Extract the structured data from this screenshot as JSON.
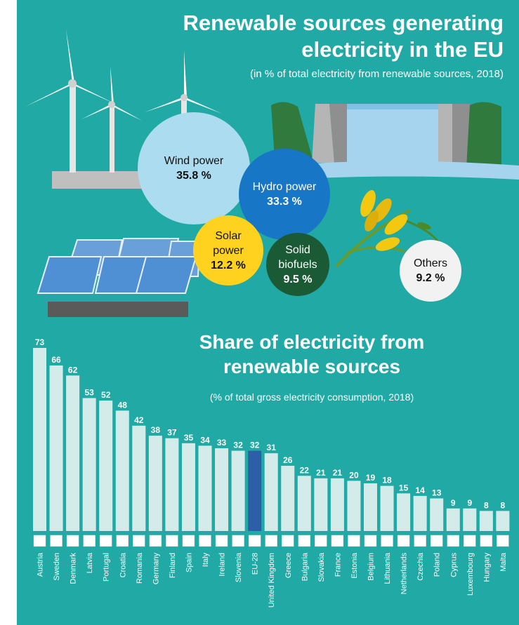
{
  "top_section": {
    "title_line1": "Renewable sources generating",
    "title_line2": "electricity in the EU",
    "subtitle": "(in % of total electricity from renewable sources, 2018)",
    "bubbles": [
      {
        "label": "Wind power",
        "value": "35.8 %"
      },
      {
        "label": "Hydro power",
        "value": "33.3 %"
      },
      {
        "label_line1": "Solar",
        "label_line2": "power",
        "value": "12.2 %"
      },
      {
        "label_line1": "Solid",
        "label_line2": "biofuels",
        "value": "9.5 %"
      },
      {
        "label": "Others",
        "value": "9.2 %"
      }
    ]
  },
  "bottom_section": {
    "title_line1": "Share of electricity from",
    "title_line2": "renewable sources",
    "subtitle": "(% of total gross electricity consumption, 2018)"
  },
  "colors": {
    "background": "#21aaa5",
    "bar": "#d3ecea",
    "bar_highlight": "#2d5fa8",
    "wind_bubble": "#acdcef",
    "hydro_bubble": "#1776c6",
    "solar_bubble": "#ffd21f",
    "biofuels_bubble": "#1a5a35",
    "others_bubble": "#f2f2f2"
  },
  "chart_data": [
    {
      "type": "pie",
      "categories": [
        "Wind power",
        "Hydro power",
        "Solar power",
        "Solid biofuels",
        "Others"
      ],
      "values": [
        35.8,
        33.3,
        12.2,
        9.5,
        9.2
      ],
      "title": "Renewable sources generating electricity in the EU",
      "subtitle": "(in % of total electricity from renewable sources, 2018)"
    },
    {
      "type": "bar",
      "title": "Share of electricity from renewable sources",
      "subtitle": "(% of total gross electricity consumption, 2018)",
      "categories": [
        "Austria",
        "Sweden",
        "Denmark",
        "Latvia",
        "Portugal",
        "Croatia",
        "Romania",
        "Germany",
        "Finland",
        "Spain",
        "Italy",
        "Ireland",
        "Slovenia",
        "EU-28",
        "United Kingdom",
        "Greece",
        "Bulgaria",
        "Slovakia",
        "France",
        "Estonia",
        "Belgium",
        "Lithuania",
        "Netherlands",
        "Czechia",
        "Poland",
        "Cyprus",
        "Luxembourg",
        "Hungary",
        "Malta"
      ],
      "values": [
        73,
        66,
        62,
        53,
        52,
        48,
        42,
        38,
        37,
        35,
        34,
        33,
        32,
        32,
        31,
        26,
        22,
        21,
        21,
        20,
        19,
        18,
        15,
        14,
        13,
        9,
        9,
        8,
        8
      ],
      "highlight": "EU-28",
      "ylim": [
        0,
        80
      ],
      "grid": false
    }
  ]
}
